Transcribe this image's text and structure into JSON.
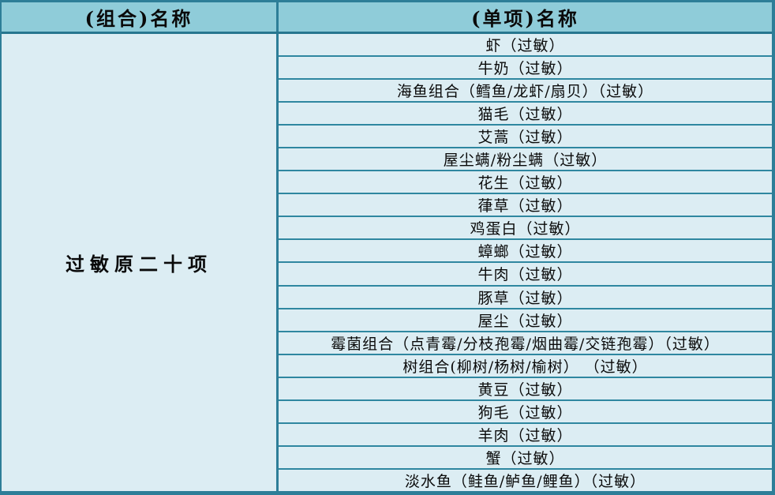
{
  "colors": {
    "header_bg": "#8fccd9",
    "body_bg": "#dcedf3",
    "outer_border": "#2d7e98",
    "row_divider": "#2f87a0",
    "text": "#0a0a0a"
  },
  "table": {
    "columns": [
      {
        "label": "(组合)名称"
      },
      {
        "label": "(单项)名称"
      }
    ],
    "group_name": "过敏原二十项",
    "items": [
      "虾（过敏）",
      "牛奶（过敏）",
      "海鱼组合（鳕鱼/龙虾/扇贝）（过敏）",
      "猫毛（过敏）",
      "艾蒿（过敏）",
      "屋尘螨/粉尘螨（过敏）",
      "花生（过敏）",
      "葎草（过敏）",
      "鸡蛋白（过敏）",
      "蟑螂（过敏）",
      "牛肉（过敏）",
      "豚草（过敏）",
      "屋尘（过敏）",
      "霉菌组合（点青霉/分枝孢霉/烟曲霉/交链孢霉）（过敏）",
      "树组合(柳树/杨树/榆树） （过敏）",
      "黄豆（过敏）",
      "狗毛（过敏）",
      "羊肉（过敏）",
      "蟹（过敏）",
      "淡水鱼（鲑鱼/鲈鱼/鲤鱼）（过敏）"
    ]
  }
}
